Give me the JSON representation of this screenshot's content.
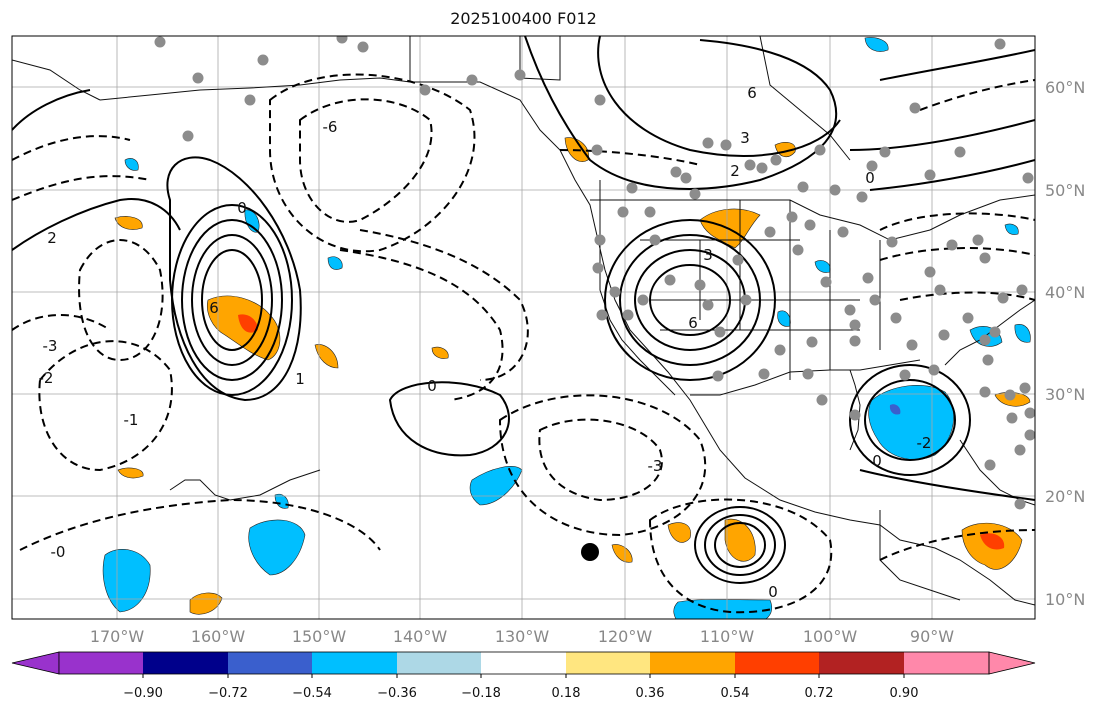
{
  "title": "2025100400 F012",
  "map": {
    "lon_labels": [
      "170°W",
      "160°W",
      "150°W",
      "140°W",
      "130°W",
      "120°W",
      "110°W",
      "100°W",
      "90°W"
    ],
    "lat_labels": [
      "60°N",
      "50°N",
      "40°N",
      "30°N",
      "20°N",
      "10°N"
    ],
    "contour_labels": [
      {
        "text": "6"
      },
      {
        "text": "-6"
      },
      {
        "text": "-3"
      },
      {
        "text": "-2"
      },
      {
        "text": "-1"
      },
      {
        "text": "0"
      },
      {
        "text": "0"
      },
      {
        "text": "2"
      },
      {
        "text": "1"
      },
      {
        "text": "3"
      },
      {
        "text": "6"
      },
      {
        "text": "3"
      },
      {
        "text": "2"
      },
      {
        "text": "0"
      },
      {
        "text": "0"
      },
      {
        "text": "6"
      },
      {
        "text": "-2"
      },
      {
        "text": "-3"
      },
      {
        "text": "0"
      },
      {
        "text": "-0"
      }
    ]
  },
  "colorbar": {
    "ticks": [
      "−0.90",
      "−0.72",
      "−0.54",
      "−0.36",
      "−0.18",
      "0.18",
      "0.36",
      "0.54",
      "0.72",
      "0.90"
    ],
    "colors": [
      "#9932cc",
      "#00008b",
      "#3a5fcd",
      "#00bfff",
      "#add8e6",
      "#ffffff",
      "#ffe680",
      "#ffa500",
      "#ff3f00",
      "#b22222",
      "#ff88aa"
    ]
  },
  "shading": {
    "positive": "#ffa500",
    "strong_positive": "#ff3f00",
    "negative": "#00bfff",
    "deep_negative": "#3a5fcd"
  },
  "marker_color": "#8c8c8c"
}
